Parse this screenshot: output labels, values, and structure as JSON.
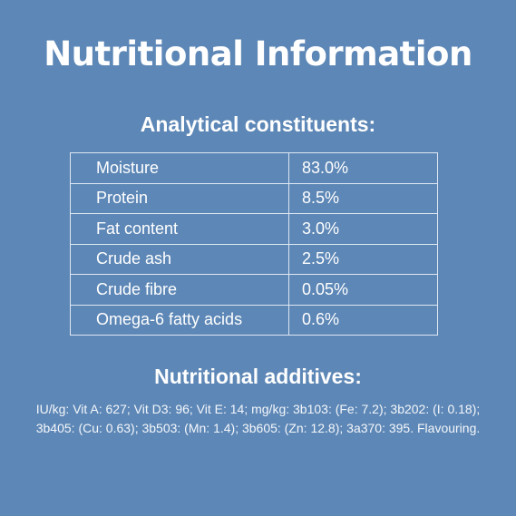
{
  "title": "Nutritional Information",
  "colors": {
    "background": "#5d87b6",
    "text": "#ffffff",
    "table_border": "#dfe8f2"
  },
  "analytical_constituents": {
    "heading": "Analytical constituents:",
    "rows": [
      {
        "name": "Moisture",
        "value": "83.0%"
      },
      {
        "name": "Protein",
        "value": "8.5%"
      },
      {
        "name": "Fat content",
        "value": "3.0%"
      },
      {
        "name": "Crude ash",
        "value": "2.5%"
      },
      {
        "name": "Crude fibre",
        "value": "0.05%"
      },
      {
        "name": "Omega-6 fatty acids",
        "value": "0.6%"
      }
    ]
  },
  "nutritional_additives": {
    "heading": "Nutritional additives:",
    "text": "IU/kg: Vit A: 627; Vit D3: 96; Vit E: 14; mg/kg: 3b103: (Fe: 7.2); 3b202: (I: 0.18); 3b405: (Cu: 0.63); 3b503: (Mn: 1.4); 3b605: (Zn: 12.8); 3a370: 395. Flavouring."
  }
}
